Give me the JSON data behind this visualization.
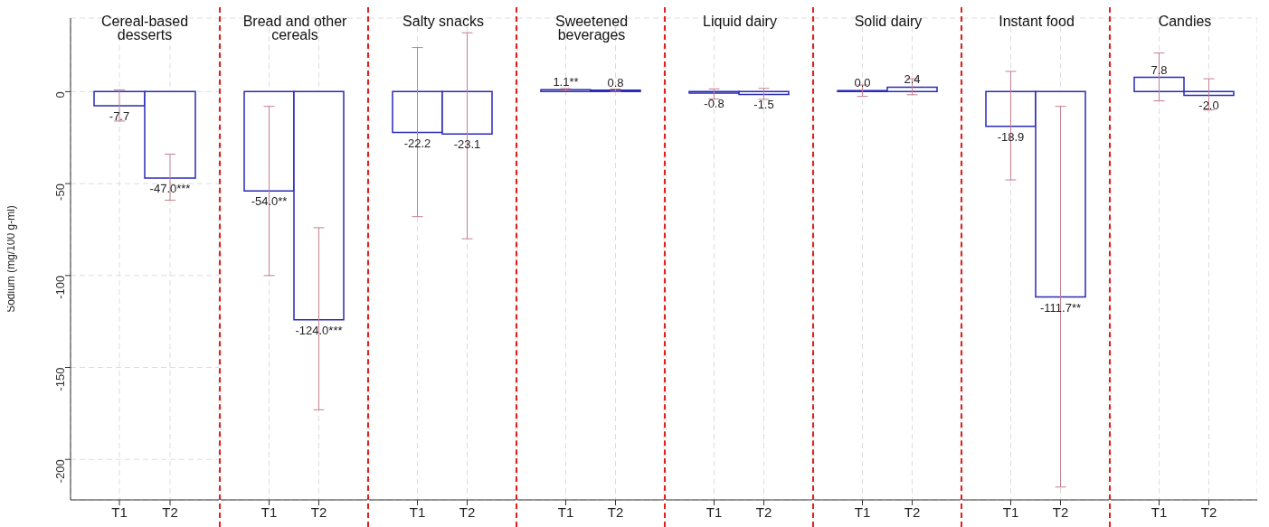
{
  "chart_data": [
    {
      "type": "bar",
      "title": "Cereal-based desserts",
      "ylabel": "Sodium (mg/100 g-ml)",
      "categories": [
        "T1",
        "T2"
      ],
      "values": [
        -7.7,
        -47.0
      ],
      "errors": [
        [
          -16,
          1
        ],
        [
          -59,
          -34
        ]
      ],
      "value_labels": [
        "-7.7",
        "-47.0***"
      ],
      "color": "#2a2ab8",
      "ylim": [
        -222,
        40
      ],
      "yticks": [
        0,
        -50,
        -100,
        -150,
        -200
      ],
      "grid": true
    },
    {
      "type": "bar",
      "title": "Bread and other cereals",
      "categories": [
        "T1",
        "T2"
      ],
      "values": [
        -54.0,
        -124.0
      ],
      "errors": [
        [
          -100,
          -8
        ],
        [
          -173,
          -74
        ]
      ],
      "value_labels": [
        "-54.0**",
        "-124.0***"
      ],
      "color": "#2a2ab8",
      "ylim": [
        -222,
        40
      ],
      "yticks": [
        0,
        -50,
        -100,
        -150,
        -200
      ],
      "grid": true,
      "tick_labels": "x"
    },
    {
      "type": "bar",
      "title": "Salty snacks",
      "categories": [
        "T1",
        "T2"
      ],
      "values": [
        -22.2,
        -23.1
      ],
      "errors": [
        [
          -68,
          24
        ],
        [
          -80,
          32
        ]
      ],
      "value_labels": [
        "-22.2",
        "-23.1"
      ],
      "color": "#2a2ab8",
      "ylim": [
        -222,
        40
      ],
      "yticks": [
        0,
        -50,
        -100,
        -150,
        -200
      ],
      "grid": true,
      "tick_labels": "x"
    },
    {
      "type": "bar",
      "title": "Sweetened beverages",
      "categories": [
        "T1",
        "T2"
      ],
      "values": [
        1.1,
        0.8
      ],
      "errors": [
        [
          0.5,
          1.7
        ],
        [
          0.2,
          1.4
        ]
      ],
      "value_labels": [
        "1.1**",
        "0.8"
      ],
      "color": "#2a2ab8",
      "ylim": [
        -222,
        40
      ],
      "yticks": [
        0,
        -50,
        -100,
        -150,
        -200
      ],
      "grid": true,
      "tick_labels": "x"
    },
    {
      "type": "bar",
      "title": "Liquid dairy",
      "categories": [
        "T1",
        "T2"
      ],
      "values": [
        -0.8,
        -1.5
      ],
      "errors": [
        [
          -4,
          1.5
        ],
        [
          -4.2,
          1.8
        ]
      ],
      "value_labels": [
        "-0.8",
        "-1.5"
      ],
      "color": "#2a2ab8",
      "ylim": [
        -222,
        40
      ],
      "yticks": [
        0,
        -50,
        -100,
        -150,
        -200
      ],
      "grid": true,
      "tick_labels": "x"
    },
    {
      "type": "bar",
      "title": "Solid dairy",
      "categories": [
        "T1",
        "T2"
      ],
      "values": [
        0.0,
        2.4
      ],
      "errors": [
        [
          -2.6,
          3.6
        ],
        [
          -1.7,
          7
        ]
      ],
      "value_labels": [
        "0.0",
        "2.4"
      ],
      "color": "#2a2ab8",
      "ylim": [
        -222,
        40
      ],
      "yticks": [
        0,
        -50,
        -100,
        -150,
        -200
      ],
      "grid": true,
      "tick_labels": "x"
    },
    {
      "type": "bar",
      "title": "Instant food",
      "categories": [
        "T1",
        "T2"
      ],
      "values": [
        -18.9,
        -111.7
      ],
      "errors": [
        [
          -48,
          11
        ],
        [
          -215,
          -8
        ]
      ],
      "value_labels": [
        "-18.9",
        "-111.7**"
      ],
      "color": "#2a2ab8",
      "ylim": [
        -222,
        40
      ],
      "yticks": [
        0,
        -50,
        -100,
        -150,
        -200
      ],
      "grid": true,
      "tick_labels": "x"
    },
    {
      "type": "bar",
      "title": "Candies",
      "categories": [
        "T1",
        "T2"
      ],
      "values": [
        7.8,
        -2.0
      ],
      "errors": [
        [
          -5,
          21
        ],
        [
          -10,
          7
        ]
      ],
      "value_labels": [
        "7.8",
        "-2.0"
      ],
      "color": "#2a2ab8",
      "ylim": [
        -222,
        40
      ],
      "yticks": [
        0,
        -50,
        -100,
        -150,
        -200
      ],
      "grid": true,
      "tick_labels": "x"
    }
  ]
}
